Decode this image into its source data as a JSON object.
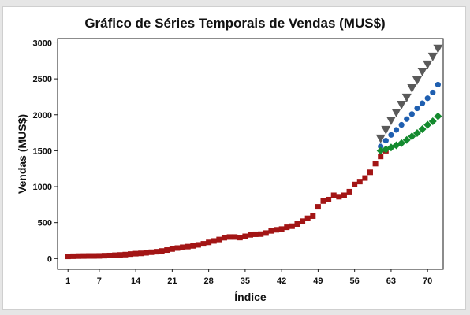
{
  "chart_data": {
    "type": "scatter",
    "title": "Gráfico de Séries Temporais de Vendas (MUS$)",
    "xlabel": "Índice",
    "ylabel": "Vendas (MUS$)",
    "xlim": [
      -1,
      73
    ],
    "ylim": [
      -150,
      3060
    ],
    "x_ticks": [
      1,
      7,
      14,
      21,
      28,
      35,
      42,
      49,
      56,
      63,
      70
    ],
    "y_ticks": [
      0,
      500,
      1000,
      1500,
      2000,
      2500,
      3000
    ],
    "grid": false,
    "legend": "none",
    "series": [
      {
        "marker": "square",
        "color": "#a31515",
        "x_start": 1,
        "values": [
          30,
          32,
          34,
          35,
          36,
          36,
          37,
          40,
          42,
          46,
          50,
          55,
          62,
          68,
          72,
          80,
          88,
          95,
          105,
          118,
          132,
          146,
          157,
          166,
          176,
          190,
          205,
          225,
          245,
          265,
          290,
          300,
          300,
          292,
          310,
          330,
          338,
          340,
          355,
          385,
          400,
          410,
          435,
          450,
          480,
          520,
          560,
          590,
          720,
          800,
          820,
          880,
          860,
          880,
          930,
          1030,
          1070,
          1120,
          1200,
          1320,
          1420,
          1500
        ]
      },
      {
        "marker": "circle",
        "color": "#1f5fb0",
        "x_start": 61,
        "values": [
          1560,
          1640,
          1720,
          1790,
          1860,
          1940,
          2010,
          2090,
          2160,
          2230,
          2310,
          2420
        ]
      },
      {
        "marker": "diamond",
        "color": "#138a2e",
        "x_start": 61,
        "values": [
          1500,
          1520,
          1545,
          1575,
          1605,
          1650,
          1700,
          1745,
          1800,
          1860,
          1910,
          1980
        ]
      },
      {
        "marker": "triangle-down",
        "color": "#5a5a5a",
        "x_start": 61,
        "values": [
          1670,
          1790,
          1920,
          2030,
          2140,
          2240,
          2370,
          2480,
          2600,
          2700,
          2810,
          2920
        ]
      }
    ]
  }
}
